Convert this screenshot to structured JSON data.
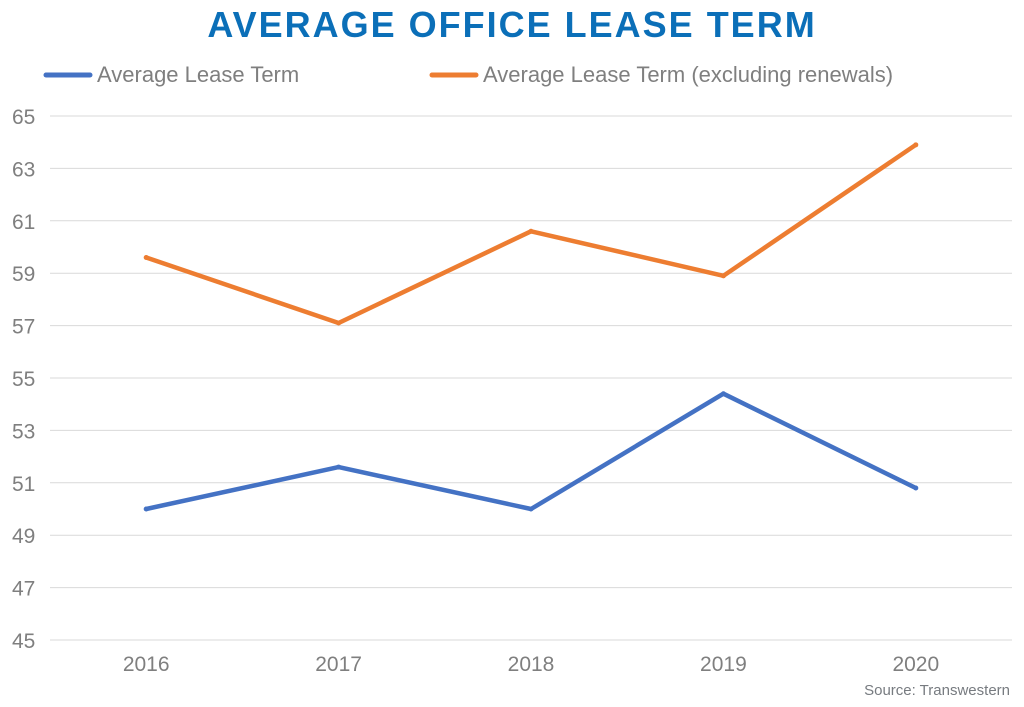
{
  "chart_data": {
    "type": "line",
    "title": "AVERAGE OFFICE LEASE TERM",
    "categories": [
      "2016",
      "2017",
      "2018",
      "2019",
      "2020"
    ],
    "series": [
      {
        "name": "Average Lease Term",
        "color": "#4472c4",
        "values": [
          50.0,
          51.6,
          50.0,
          54.4,
          50.8
        ]
      },
      {
        "name": "Average Lease Term (excluding renewals)",
        "color": "#ed7d31",
        "values": [
          59.6,
          57.1,
          60.6,
          58.9,
          63.9
        ]
      }
    ],
    "ylim": [
      45,
      65
    ],
    "yticks": [
      45,
      47,
      49,
      51,
      53,
      55,
      57,
      59,
      61,
      63,
      65
    ],
    "grid": true,
    "legend": "top-left",
    "source": "Source: Transwestern"
  }
}
